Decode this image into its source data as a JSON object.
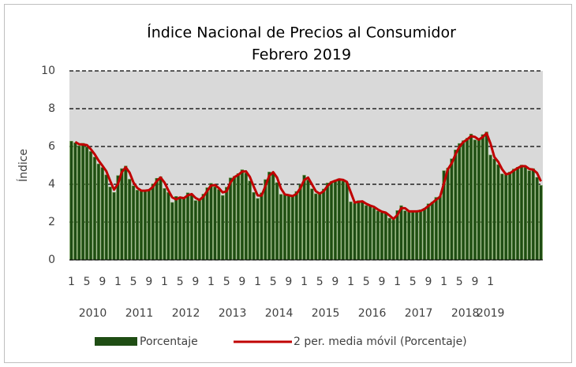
{
  "chart_data": {
    "type": "bar",
    "title": "Índice Nacional de Precios al Consumidor",
    "subtitle": "Febrero 2019",
    "y_label": "Índice",
    "categories": [
      "1",
      null,
      null,
      null,
      "5",
      null,
      null,
      null,
      "9",
      null,
      null,
      null,
      "1",
      null,
      null,
      null,
      "5",
      null,
      null,
      null,
      "9",
      null,
      null,
      null,
      "1",
      null,
      null,
      null,
      "5",
      null,
      null,
      null,
      "9",
      null,
      null,
      null,
      "1",
      null,
      null,
      null,
      "5",
      null,
      null,
      null,
      "9",
      null,
      null,
      null,
      "1",
      null,
      null,
      null,
      "5",
      null,
      null,
      null,
      "9",
      null,
      null,
      null,
      "1",
      null,
      null,
      null,
      "5",
      null,
      null,
      null,
      "9",
      null,
      null,
      null,
      "1",
      null,
      null,
      null,
      "5",
      null,
      null,
      null,
      "9",
      null,
      null,
      null,
      "1",
      null,
      null,
      null,
      "5",
      null,
      null,
      null,
      "9",
      null,
      null,
      null,
      "1",
      null,
      null,
      null,
      "5",
      null,
      null,
      null,
      "9",
      null,
      null,
      null,
      "1",
      null,
      null,
      null,
      null,
      null,
      null,
      null,
      null,
      null,
      null,
      null,
      null,
      null
    ],
    "year_labels": [
      "2010",
      "2011",
      "2012",
      "2013",
      "2014",
      "2015",
      "2016",
      "2017",
      "2018",
      "2019"
    ],
    "series": [
      {
        "name": "Porcentaje",
        "color": "#1f4d14",
        "values": [
          6.28,
          6.2,
          6.04,
          6.17,
          5.98,
          5.74,
          5.44,
          5.08,
          4.89,
          4.5,
          3.86,
          3.57,
          4.46,
          4.83,
          4.97,
          4.27,
          3.92,
          3.69,
          3.64,
          3.68,
          3.7,
          4.02,
          4.32,
          4.4,
          3.78,
          3.57,
          3.04,
          3.36,
          3.25,
          3.28,
          3.55,
          3.42,
          3.14,
          3.2,
          3.48,
          3.82,
          4.05,
          3.87,
          3.73,
          3.41,
          3.85,
          4.34,
          4.42,
          4.57,
          4.77,
          4.6,
          4.18,
          3.57,
          3.25,
          3.55,
          4.25,
          4.65,
          4.63,
          4.09,
          3.47,
          3.46,
          3.39,
          3.36,
          3.62,
          3.97,
          4.48,
          4.23,
          3.76,
          3.5,
          3.51,
          3.75,
          4.07,
          4.15,
          4.22,
          4.3,
          4.17,
          4.08,
          3.07,
          3.0,
          3.14,
          3.06,
          2.88,
          2.87,
          2.74,
          2.59,
          2.52,
          2.48,
          2.21,
          2.13,
          2.61,
          2.87,
          2.6,
          2.54,
          2.6,
          2.54,
          2.65,
          2.73,
          2.97,
          3.06,
          3.31,
          3.36,
          4.72,
          4.86,
          5.35,
          5.82,
          6.16,
          6.31,
          6.44,
          6.66,
          6.35,
          6.37,
          6.63,
          6.77,
          5.55,
          5.34,
          5.04,
          4.55,
          4.51,
          4.65,
          4.81,
          4.9,
          5.02,
          4.9,
          4.72,
          4.83,
          4.37,
          3.94
        ]
      },
      {
        "name": "2 per. media móvil (Porcentaje)",
        "color": "#c00000",
        "values": [
          null,
          6.24,
          6.12,
          6.105,
          6.075,
          5.86,
          5.59,
          5.26,
          4.985,
          4.695,
          4.18,
          3.715,
          4.015,
          4.645,
          4.9,
          4.62,
          4.095,
          3.805,
          3.665,
          3.66,
          3.69,
          3.86,
          4.17,
          4.36,
          4.09,
          3.675,
          3.305,
          3.2,
          3.305,
          3.265,
          3.415,
          3.485,
          3.28,
          3.17,
          3.34,
          3.65,
          3.935,
          3.96,
          3.8,
          3.57,
          3.63,
          4.095,
          4.38,
          4.495,
          4.67,
          4.685,
          4.39,
          3.875,
          3.41,
          3.4,
          3.9,
          4.45,
          4.64,
          4.36,
          3.78,
          3.465,
          3.425,
          3.375,
          3.49,
          3.795,
          4.225,
          4.355,
          3.995,
          3.63,
          3.505,
          3.63,
          3.91,
          4.11,
          4.185,
          4.26,
          4.235,
          4.125,
          3.575,
          3.035,
          3.07,
          3.1,
          2.97,
          2.875,
          2.805,
          2.665,
          2.555,
          2.5,
          2.345,
          2.17,
          2.37,
          2.74,
          2.735,
          2.57,
          2.57,
          2.57,
          2.595,
          2.69,
          2.85,
          3.015,
          3.185,
          3.335,
          4.04,
          4.79,
          5.105,
          5.585,
          5.99,
          6.235,
          6.375,
          6.55,
          6.505,
          6.36,
          6.5,
          6.7,
          6.16,
          5.445,
          5.19,
          4.795,
          4.53,
          4.58,
          4.73,
          4.855,
          4.96,
          4.96,
          4.81,
          4.775,
          4.6,
          4.155
        ]
      }
    ],
    "ylim": [
      0,
      10
    ],
    "yticks": [
      0,
      2,
      4,
      6,
      8,
      10
    ],
    "grid": true,
    "plot_background": "#d9d9d9"
  }
}
